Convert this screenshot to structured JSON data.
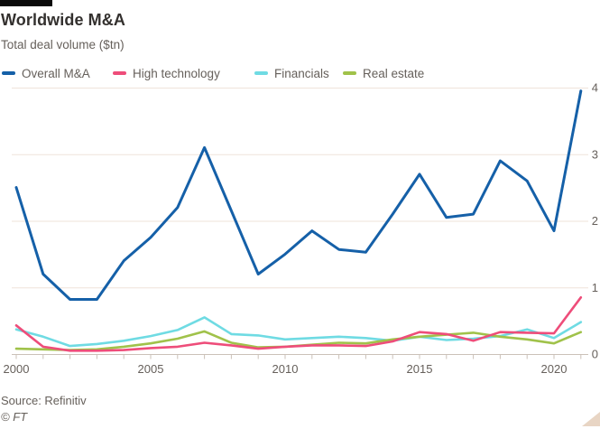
{
  "header": {
    "title": "Worldwide M&A",
    "subtitle": "Total deal volume ($tn)"
  },
  "footer": {
    "source": "Source: Refinitiv",
    "copyright": "© FT"
  },
  "colors": {
    "title_text": "#33302e",
    "secondary_text": "#66605b",
    "grid": "#efe3da",
    "axis": "#cbc1b8",
    "background": "#ffffff",
    "brand_bar": "#0a0a0a",
    "resize_triangle": "#e8d5c4"
  },
  "chart_data": {
    "type": "line",
    "title": "Worldwide M&A",
    "subtitle": "Total deal volume ($tn)",
    "xlabel": "",
    "ylabel": "Total deal volume ($tn)",
    "ylim": [
      0,
      4
    ],
    "yticks": [
      0,
      1,
      2,
      3,
      4
    ],
    "xticks_labeled": [
      2000,
      2005,
      2010,
      2015,
      2020
    ],
    "grid": "horizontal",
    "legend_position": "top",
    "x": [
      2000,
      2001,
      2002,
      2003,
      2004,
      2005,
      2006,
      2007,
      2008,
      2009,
      2010,
      2011,
      2012,
      2013,
      2014,
      2015,
      2016,
      2017,
      2018,
      2019,
      2020,
      2021
    ],
    "series": [
      {
        "name": "Overall M&A",
        "color": "#1560a8",
        "values": [
          2.5,
          1.2,
          0.82,
          0.82,
          1.4,
          1.75,
          2.2,
          3.1,
          2.15,
          1.2,
          1.5,
          1.85,
          1.57,
          1.53,
          2.1,
          2.7,
          2.05,
          2.1,
          2.9,
          2.6,
          1.85,
          3.95
        ]
      },
      {
        "name": "High technology",
        "color": "#ee4d7a",
        "values": [
          0.43,
          0.11,
          0.05,
          0.05,
          0.06,
          0.09,
          0.11,
          0.17,
          0.13,
          0.08,
          0.11,
          0.13,
          0.13,
          0.12,
          0.19,
          0.33,
          0.3,
          0.2,
          0.33,
          0.32,
          0.31,
          0.85
        ]
      },
      {
        "name": "Financials",
        "color": "#6fdbe3",
        "values": [
          0.37,
          0.26,
          0.12,
          0.15,
          0.2,
          0.27,
          0.36,
          0.55,
          0.3,
          0.28,
          0.22,
          0.24,
          0.26,
          0.24,
          0.2,
          0.26,
          0.21,
          0.23,
          0.27,
          0.37,
          0.24,
          0.48
        ]
      },
      {
        "name": "Real estate",
        "color": "#a0c24a",
        "values": [
          0.08,
          0.07,
          0.06,
          0.07,
          0.11,
          0.16,
          0.23,
          0.34,
          0.17,
          0.1,
          0.11,
          0.14,
          0.17,
          0.16,
          0.22,
          0.26,
          0.29,
          0.32,
          0.26,
          0.22,
          0.16,
          0.33
        ]
      }
    ]
  }
}
